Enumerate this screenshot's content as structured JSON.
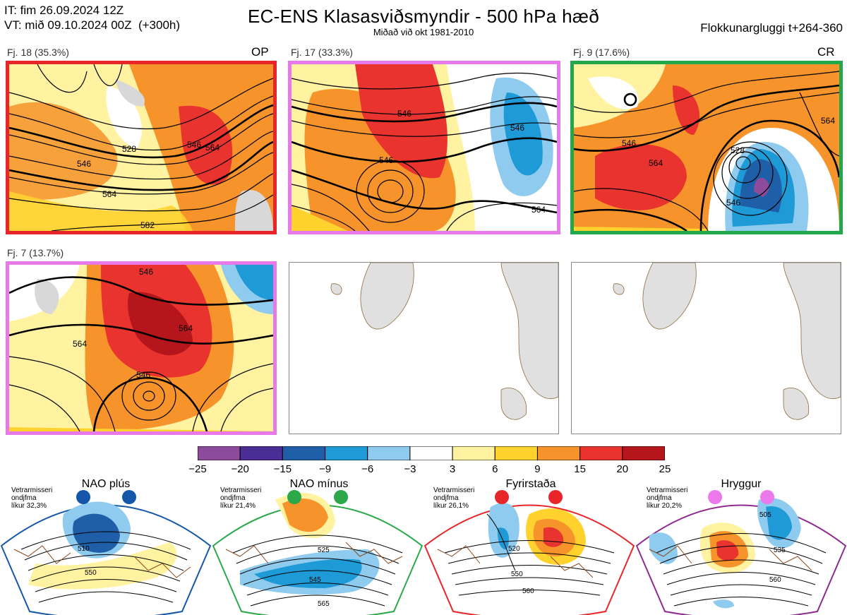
{
  "header": {
    "it_line": "IT: fim 26.09.2024 12Z",
    "vt_line": "VT: mið 09.10.2024 00Z  (+300h)",
    "title": "EC-ENS Klasasviðsmyndir - 500 hPa hæð",
    "subtitle": "Miðað við okt 1981-2010",
    "window": "Flokkunargluggi t+264-360"
  },
  "clusters": [
    {
      "label": "Fj. 18 (35.3%)",
      "tag": "OP",
      "frame_color": "#e8262a",
      "contours": [
        "546",
        "528",
        "546",
        "564",
        "564",
        "582"
      ]
    },
    {
      "label": "Fj. 17 (33.3%)",
      "tag": "",
      "frame_color": "#e879e8",
      "contours": [
        "546",
        "546",
        "546",
        "564"
      ]
    },
    {
      "label": "Fj. 9 (17.6%)",
      "tag": "CR",
      "frame_color": "#22a84a",
      "contours": [
        "546",
        "564",
        "528",
        "546",
        "564"
      ]
    },
    {
      "label": "Fj. 7 (13.7%)",
      "tag": "",
      "frame_color": "#e879e8",
      "contours": [
        "546",
        "564",
        "564",
        "546"
      ]
    }
  ],
  "colorbar": {
    "ticks": [
      "−25",
      "−20",
      "−15",
      "−9",
      "−6",
      "−3",
      "3",
      "6",
      "9",
      "15",
      "20",
      "25"
    ],
    "colors": [
      "#8e4b9c",
      "#4b2d96",
      "#1f5fa8",
      "#1e9ad6",
      "#8fcbee",
      "#ffffff",
      "#fff2a0",
      "#ffd22e",
      "#f6932b",
      "#e8332e",
      "#b5161b"
    ]
  },
  "regimes": [
    {
      "name": "NAO plús",
      "meta": "Vetrarmisseri\nondjfma\nlíkur 32,3%",
      "color": "#1457a8",
      "dot_color": "#1457a8",
      "labels": [
        "510",
        "550"
      ]
    },
    {
      "name": "NAO mínus",
      "meta": "Vetrarmisseri\nondjfma\nlíkur 21,4%",
      "color": "#2aa84a",
      "dot_color": "#2aa84a",
      "labels": [
        "525",
        "545",
        "565"
      ]
    },
    {
      "name": "Fyrirstaða",
      "meta": "Vetrarmisseri\nondjfma\nlíkur 26,1%",
      "color": "#e8262a",
      "dot_color": "#e8262a",
      "labels": [
        "520",
        "550",
        "560"
      ]
    },
    {
      "name": "Hryggur",
      "meta": "Vetrarmisseri\nondjfma\nlíkur 20,2%",
      "color": "#8e2a8e",
      "dot_color": "#ec79ec",
      "labels": [
        "505",
        "535",
        "560"
      ]
    }
  ]
}
